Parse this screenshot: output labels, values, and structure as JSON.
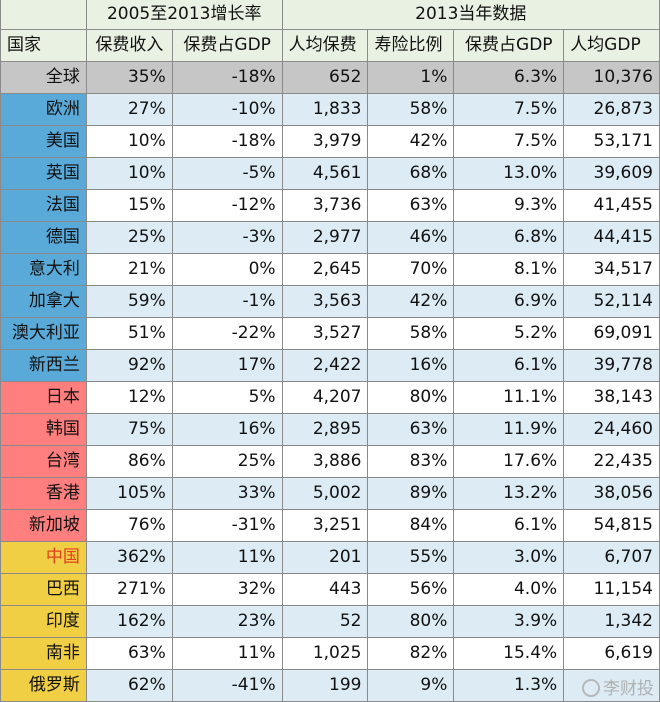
{
  "headers": {
    "group1": "2005至2013增长率",
    "group2": "2013当年数据",
    "columns": [
      "国家",
      "保费收入",
      "保费占GDP",
      "人均保费",
      "寿险比例",
      "保费占GDP",
      "人均GDP"
    ]
  },
  "rows": [
    {
      "country": "全球",
      "region": "global",
      "v": [
        "35%",
        "-18%",
        "652",
        "1%",
        "6.3%",
        "10,376"
      ]
    },
    {
      "country": "欧洲",
      "region": "west",
      "v": [
        "27%",
        "-10%",
        "1,833",
        "58%",
        "7.5%",
        "26,873"
      ]
    },
    {
      "country": "美国",
      "region": "west",
      "v": [
        "10%",
        "-18%",
        "3,979",
        "42%",
        "7.5%",
        "53,171"
      ]
    },
    {
      "country": "英国",
      "region": "west",
      "v": [
        "10%",
        "-5%",
        "4,561",
        "68%",
        "13.0%",
        "39,609"
      ]
    },
    {
      "country": "法国",
      "region": "west",
      "v": [
        "15%",
        "-12%",
        "3,736",
        "63%",
        "9.3%",
        "41,455"
      ]
    },
    {
      "country": "德国",
      "region": "west",
      "v": [
        "25%",
        "-3%",
        "2,977",
        "46%",
        "6.8%",
        "44,415"
      ]
    },
    {
      "country": "意大利",
      "region": "west",
      "v": [
        "21%",
        "0%",
        "2,645",
        "70%",
        "8.1%",
        "34,517"
      ]
    },
    {
      "country": "加拿大",
      "region": "west",
      "v": [
        "59%",
        "-1%",
        "3,563",
        "42%",
        "6.9%",
        "52,114"
      ]
    },
    {
      "country": "澳大利亚",
      "region": "west",
      "v": [
        "51%",
        "-22%",
        "3,527",
        "58%",
        "5.2%",
        "69,091"
      ]
    },
    {
      "country": "新西兰",
      "region": "west",
      "v": [
        "92%",
        "17%",
        "2,422",
        "16%",
        "6.1%",
        "39,778"
      ]
    },
    {
      "country": "日本",
      "region": "asia",
      "v": [
        "12%",
        "5%",
        "4,207",
        "80%",
        "11.1%",
        "38,143"
      ]
    },
    {
      "country": "韩国",
      "region": "asia",
      "v": [
        "75%",
        "16%",
        "2,895",
        "63%",
        "11.9%",
        "24,460"
      ]
    },
    {
      "country": "台湾",
      "region": "asia",
      "v": [
        "86%",
        "25%",
        "3,886",
        "83%",
        "17.6%",
        "22,435"
      ]
    },
    {
      "country": "香港",
      "region": "asia",
      "v": [
        "105%",
        "33%",
        "5,002",
        "89%",
        "13.2%",
        "38,056"
      ]
    },
    {
      "country": "新加坡",
      "region": "asia",
      "v": [
        "76%",
        "-31%",
        "3,251",
        "84%",
        "6.1%",
        "54,815"
      ]
    },
    {
      "country": "中国",
      "region": "brics",
      "v": [
        "362%",
        "11%",
        "201",
        "55%",
        "3.0%",
        "6,707"
      ]
    },
    {
      "country": "巴西",
      "region": "brics",
      "v": [
        "271%",
        "32%",
        "443",
        "56%",
        "4.0%",
        "11,154"
      ]
    },
    {
      "country": "印度",
      "region": "brics",
      "v": [
        "162%",
        "23%",
        "52",
        "80%",
        "3.9%",
        "1,342"
      ]
    },
    {
      "country": "南非",
      "region": "brics",
      "v": [
        "63%",
        "11%",
        "1,025",
        "82%",
        "15.4%",
        "6,619"
      ]
    },
    {
      "country": "俄罗斯",
      "region": "brics",
      "v": [
        "62%",
        "-41%",
        "199",
        "9%",
        "1.3%",
        ""
      ]
    }
  ],
  "watermark": "李财投"
}
